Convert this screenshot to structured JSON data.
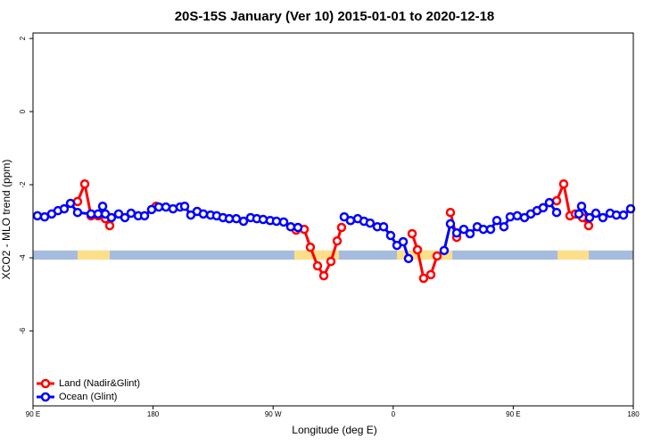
{
  "chart_data": {
    "type": "line",
    "title": "20S-15S January (Ver 10)   2015-01-01 to 2020-12-18",
    "xlabel": "Longitude (deg E)",
    "ylabel": "XCO2 - MLO trend (ppm)",
    "xlim": [
      90,
      540
    ],
    "ylim": [
      -8.05,
      2.15
    ],
    "xticks": [
      {
        "value": 90,
        "label": "90 E"
      },
      180,
      {
        "value": 270,
        "label": "90 W"
      },
      {
        "value": 360,
        "label": "0"
      },
      {
        "value": 450,
        "label": "90 E"
      },
      {
        "value": 540,
        "label": "180"
      }
    ],
    "yticks": [
      2,
      0,
      -2,
      -4,
      -6
    ],
    "legend": "bottomleft",
    "surface_strip": {
      "y": [
        -3.8,
        -4.05
      ],
      "ocean_color": "#a5bcdf",
      "land_color": "#fddf8a",
      "land_ranges": [
        [
          123.4,
          147.5
        ],
        [
          285.9,
          319.3
        ],
        [
          362.8,
          404.3
        ],
        [
          483.2,
          506.6
        ]
      ]
    },
    "series": [
      {
        "name": "Land (Nadir&Glint)",
        "color": "#ff0000",
        "x": [
          123.4,
          128.8,
          133.5,
          138.8,
          144.2,
          147.5,
          null,
          182.3,
          null,
          287.2,
          293.3,
          297.9,
          303.3,
          308.0,
          313.3,
          318.0,
          321.3,
          null,
          374.2,
          378.2,
          382.8,
          388.2,
          392.9,
          null,
          402.9,
          407.6,
          null,
          482.5,
          487.8,
          492.5,
          496.5,
          501.9,
          506.5
        ],
        "values": [
          -2.46,
          -1.98,
          -2.85,
          -2.85,
          -2.93,
          -3.12,
          null,
          -2.59,
          null,
          -3.24,
          -3.22,
          -3.71,
          -4.22,
          -4.49,
          -4.1,
          -3.54,
          -3.17,
          null,
          -3.34,
          -3.78,
          -4.56,
          -4.46,
          -3.95,
          null,
          -2.76,
          -3.44,
          null,
          -2.44,
          -1.98,
          -2.85,
          -2.8,
          -2.9,
          -3.12
        ]
      },
      {
        "name": "Ocean (Glint)",
        "color": "#0000ff",
        "x": [
          93.3,
          98.7,
          104.0,
          108.7,
          113.4,
          118.1,
          123.4,
          133.5,
          138.8,
          142.2,
          144.2,
          148.8,
          154.2,
          158.9,
          163.5,
          168.9,
          173.6,
          178.9,
          184.3,
          189.6,
          195.0,
          200.3,
          203.7,
          208.3,
          213.0,
          217.7,
          223.1,
          227.7,
          232.4,
          237.1,
          242.4,
          247.8,
          253.1,
          257.8,
          262.5,
          267.8,
          272.5,
          277.9,
          283.2,
          288.6,
          null,
          323.3,
          328.0,
          333.4,
          338.1,
          342.7,
          348.1,
          352.8,
          358.1,
          362.8,
          367.5,
          371.5,
          null,
          398.2,
          402.9,
          407.6,
          412.9,
          417.6,
          423.0,
          427.6,
          433.0,
          437.7,
          443.0,
          447.7,
          453.0,
          458.4,
          463.1,
          467.8,
          472.4,
          477.1,
          482.5,
          null,
          499.2,
          501.2,
          507.2,
          511.9,
          517.2,
          522.6,
          527.3,
          532.6,
          538.0
        ],
        "values": [
          -2.85,
          -2.88,
          -2.8,
          -2.71,
          -2.66,
          -2.51,
          -2.76,
          -2.8,
          -2.8,
          -2.59,
          -2.8,
          -2.9,
          -2.8,
          -2.9,
          -2.78,
          -2.85,
          -2.85,
          -2.68,
          -2.61,
          -2.61,
          -2.66,
          -2.61,
          -2.59,
          -2.83,
          -2.73,
          -2.8,
          -2.83,
          -2.85,
          -2.9,
          -2.93,
          -2.93,
          -3.0,
          -2.9,
          -2.93,
          -2.95,
          -2.98,
          -3.0,
          -3.02,
          -3.15,
          -3.17,
          null,
          -2.88,
          -2.98,
          -2.93,
          -3.0,
          -3.05,
          -3.15,
          -3.15,
          -3.39,
          -3.66,
          -3.56,
          -4.02,
          null,
          -3.8,
          -3.07,
          -3.32,
          -3.22,
          -3.34,
          -3.15,
          -3.22,
          -3.22,
          -2.98,
          -3.15,
          -2.88,
          -2.85,
          -2.9,
          -2.8,
          -2.71,
          -2.63,
          -2.49,
          -2.76,
          null,
          -2.8,
          -2.59,
          -2.9,
          -2.78,
          -2.9,
          -2.78,
          -2.83,
          -2.83,
          -2.66
        ]
      }
    ]
  }
}
